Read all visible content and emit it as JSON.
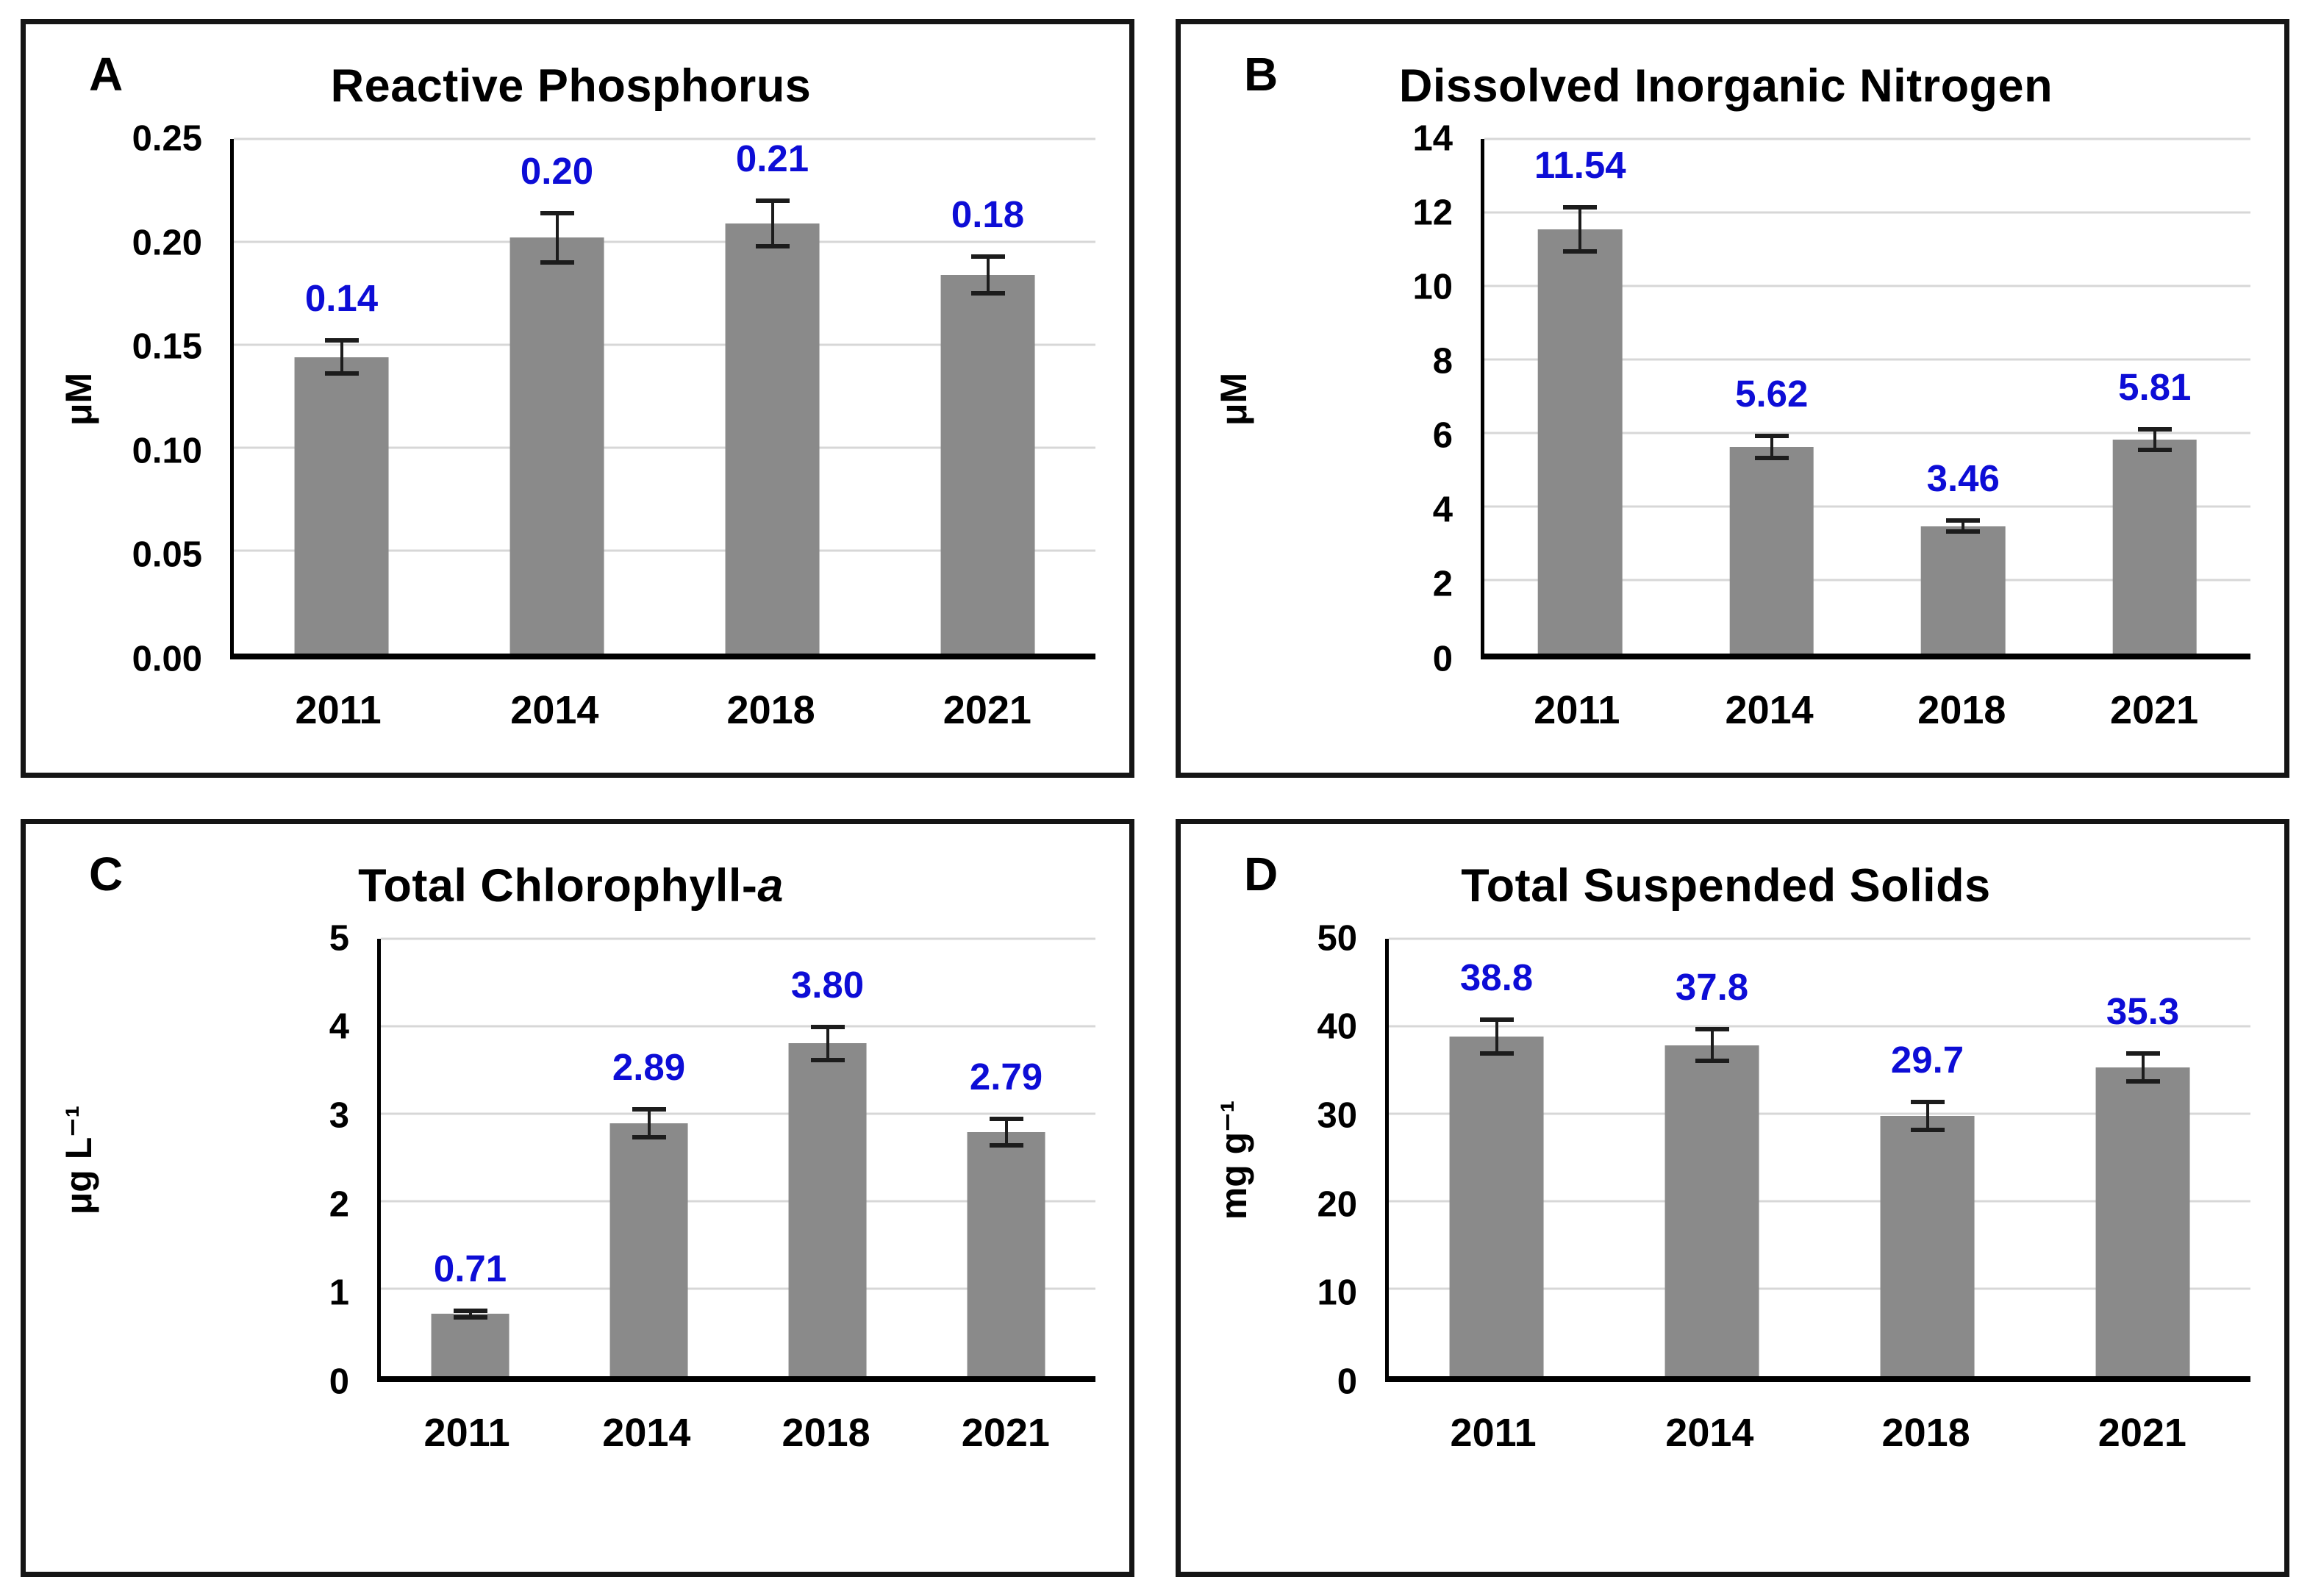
{
  "colors": {
    "bar": "#8a8a8a",
    "data_label": "#0d0dd6",
    "gridline": "#d7d7d7",
    "axis": "#000000",
    "panel_border": "#151515"
  },
  "chart_data": [
    {
      "type": "bar",
      "panel_label": "A",
      "title": "Reactive Phosphorus",
      "title_em": "",
      "y_unit": "μM",
      "categories": [
        "2011",
        "2014",
        "2018",
        "2021"
      ],
      "values": [
        0.144,
        0.202,
        0.209,
        0.184
      ],
      "value_labels": [
        "0.14",
        "0.20",
        "0.21",
        "0.18"
      ],
      "errors": [
        0.008,
        0.012,
        0.011,
        0.009
      ],
      "ylim": [
        0,
        0.25
      ],
      "yticks": [
        {
          "v": 0.0,
          "label": "0.00"
        },
        {
          "v": 0.05,
          "label": "0.05"
        },
        {
          "v": 0.1,
          "label": "0.10"
        },
        {
          "v": 0.15,
          "label": "0.15"
        },
        {
          "v": 0.2,
          "label": "0.20"
        },
        {
          "v": 0.25,
          "label": "0.25"
        }
      ],
      "grid": true,
      "legend": false
    },
    {
      "type": "bar",
      "panel_label": "B",
      "title": "Dissolved Inorganic Nitrogen",
      "title_em": "",
      "y_unit": "μM",
      "categories": [
        "2011",
        "2014",
        "2018",
        "2021"
      ],
      "values": [
        11.54,
        5.62,
        3.46,
        5.81
      ],
      "value_labels": [
        "11.54",
        "5.62",
        "3.46",
        "5.81"
      ],
      "errors": [
        0.6,
        0.3,
        0.15,
        0.28
      ],
      "ylim": [
        0,
        14
      ],
      "yticks": [
        {
          "v": 0,
          "label": "0"
        },
        {
          "v": 2,
          "label": "2"
        },
        {
          "v": 4,
          "label": "4"
        },
        {
          "v": 6,
          "label": "6"
        },
        {
          "v": 8,
          "label": "8"
        },
        {
          "v": 10,
          "label": "10"
        },
        {
          "v": 12,
          "label": "12"
        },
        {
          "v": 14,
          "label": "14"
        }
      ],
      "grid": true,
      "legend": false
    },
    {
      "type": "bar",
      "panel_label": "C",
      "title": "Total Chlorophyll-",
      "title_em": "a",
      "y_unit": "μg L⁻¹",
      "categories": [
        "2011",
        "2014",
        "2018",
        "2021"
      ],
      "values": [
        0.71,
        2.89,
        3.8,
        2.79
      ],
      "value_labels": [
        "0.71",
        "2.89",
        "3.80",
        "2.79"
      ],
      "errors": [
        0.04,
        0.16,
        0.19,
        0.15
      ],
      "ylim": [
        0,
        5
      ],
      "yticks": [
        {
          "v": 0,
          "label": "0"
        },
        {
          "v": 1,
          "label": "1"
        },
        {
          "v": 2,
          "label": "2"
        },
        {
          "v": 3,
          "label": "3"
        },
        {
          "v": 4,
          "label": "4"
        },
        {
          "v": 5,
          "label": "5"
        }
      ],
      "grid": true,
      "legend": false
    },
    {
      "type": "bar",
      "panel_label": "D",
      "title": "Total Suspended Solids",
      "title_em": "",
      "y_unit": "mg g⁻¹",
      "categories": [
        "2011",
        "2014",
        "2018",
        "2021"
      ],
      "values": [
        38.8,
        37.8,
        29.7,
        35.3
      ],
      "value_labels": [
        "38.8",
        "37.8",
        "29.7",
        "35.3"
      ],
      "errors": [
        1.9,
        1.8,
        1.6,
        1.6
      ],
      "ylim": [
        0,
        50
      ],
      "yticks": [
        {
          "v": 0,
          "label": "0"
        },
        {
          "v": 10,
          "label": "10"
        },
        {
          "v": 20,
          "label": "20"
        },
        {
          "v": 30,
          "label": "30"
        },
        {
          "v": 40,
          "label": "40"
        },
        {
          "v": 50,
          "label": "50"
        }
      ],
      "grid": true,
      "legend": false
    }
  ]
}
